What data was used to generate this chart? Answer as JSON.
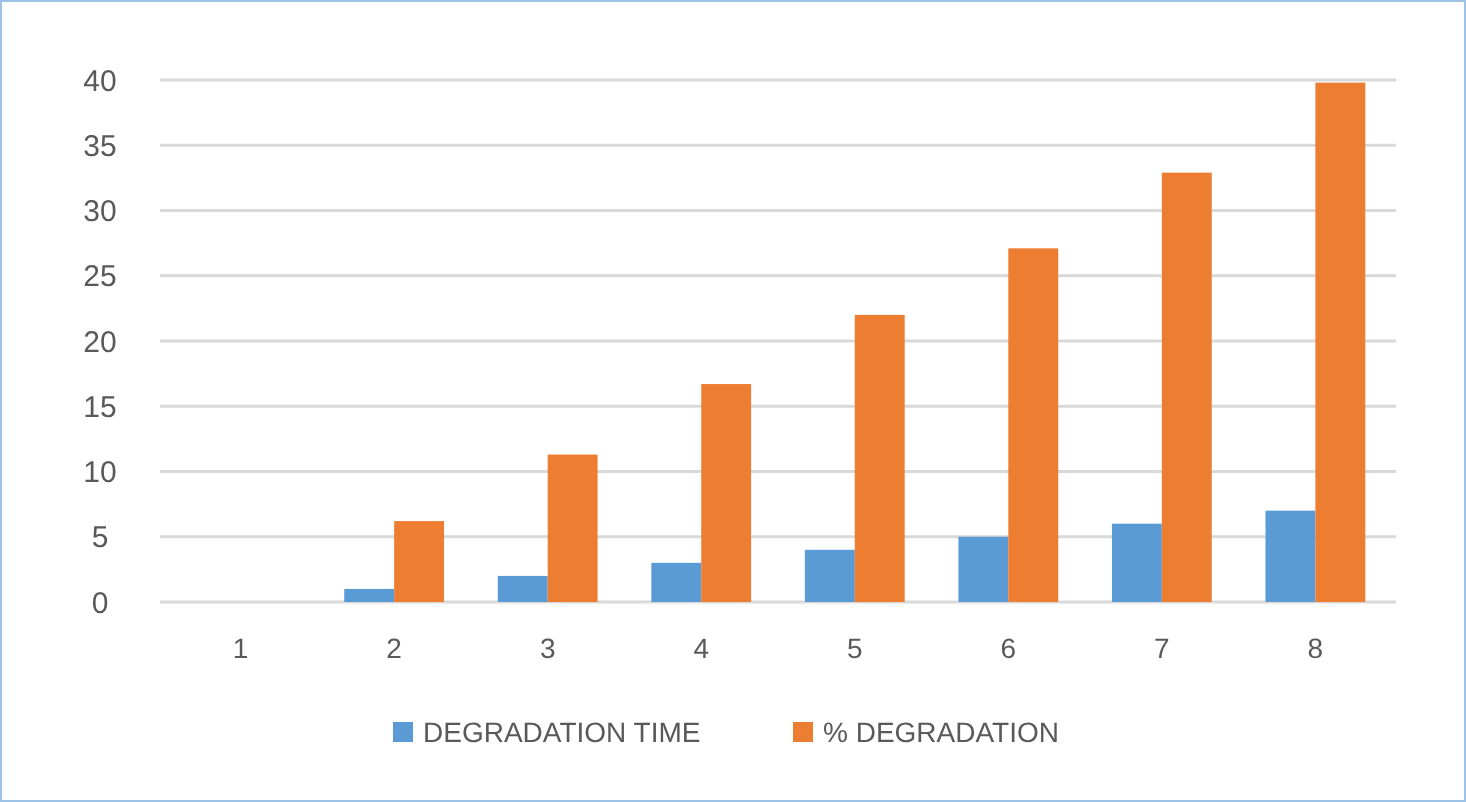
{
  "chart_data": {
    "type": "bar",
    "categories": [
      "1",
      "2",
      "3",
      "4",
      "5",
      "6",
      "7",
      "8"
    ],
    "series": [
      {
        "name": "DEGRADATION TIME",
        "color": "#5b9bd5",
        "values": [
          0,
          1,
          2,
          3,
          4,
          5,
          6,
          7
        ]
      },
      {
        "name": "% DEGRADATION",
        "color": "#ed7d31",
        "values": [
          0,
          6.2,
          11.3,
          16.7,
          22,
          27.1,
          32.9,
          39.8
        ]
      }
    ],
    "ylim": [
      0,
      40
    ],
    "yticks": [
      0,
      5,
      10,
      15,
      20,
      25,
      30,
      35,
      40
    ],
    "grid": "y",
    "legend": "bottom"
  }
}
